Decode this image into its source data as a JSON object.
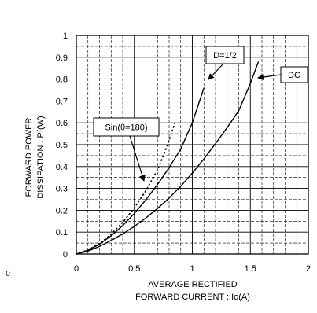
{
  "chart_data": {
    "type": "line",
    "xlabel_lines": [
      "AVERAGE RECTIFIED",
      "FORWARD CURRENT : Io(A)"
    ],
    "ylabel_lines": [
      "FORWARD POWER",
      "DISSIPATION : Pf(W)"
    ],
    "xlim": [
      0,
      2
    ],
    "ylim": [
      0,
      1
    ],
    "x_ticks": [
      0,
      0.5,
      1,
      1.5,
      2
    ],
    "x_tick_labels": [
      "0",
      "0.5",
      "1",
      "1.5",
      "2"
    ],
    "y_ticks": [
      0,
      0.1,
      0.2,
      0.3,
      0.4,
      0.5,
      0.6,
      0.7,
      0.8,
      0.9,
      1
    ],
    "y_tick_labels": [
      "0",
      "0.1",
      "0.2",
      "0.3",
      "0.4",
      "0.5",
      "0.6",
      "0.7",
      "0.8",
      "0.9",
      "1"
    ],
    "stray_label": "0",
    "grid": true,
    "series": [
      {
        "name": "DC",
        "style": "solid",
        "x": [
          0,
          0.1,
          0.2,
          0.3,
          0.4,
          0.5,
          0.6,
          0.7,
          0.8,
          0.9,
          1.0,
          1.1,
          1.2,
          1.3,
          1.4,
          1.5,
          1.57
        ],
        "y": [
          0,
          0.013,
          0.035,
          0.062,
          0.092,
          0.126,
          0.165,
          0.208,
          0.256,
          0.31,
          0.37,
          0.435,
          0.505,
          0.578,
          0.655,
          0.78,
          0.88
        ]
      },
      {
        "name": "D=1/2",
        "style": "solid",
        "x": [
          0,
          0.1,
          0.2,
          0.3,
          0.4,
          0.5,
          0.6,
          0.7,
          0.8,
          0.9,
          1.0,
          1.1
        ],
        "y": [
          0,
          0.017,
          0.045,
          0.083,
          0.13,
          0.185,
          0.248,
          0.318,
          0.395,
          0.48,
          0.6,
          0.76
        ]
      },
      {
        "name": "Sin(θ=180)",
        "style": "dotted",
        "x": [
          0,
          0.1,
          0.2,
          0.3,
          0.4,
          0.5,
          0.6,
          0.7,
          0.75,
          0.8,
          0.85
        ],
        "y": [
          0,
          0.018,
          0.048,
          0.09,
          0.145,
          0.21,
          0.29,
          0.385,
          0.45,
          0.52,
          0.6
        ]
      }
    ],
    "callouts": [
      {
        "label": "D=1/2",
        "target_series": "D=1/2"
      },
      {
        "label": "DC",
        "target_series": "DC"
      },
      {
        "label": "Sin(θ=180)",
        "target_series": "Sin(θ=180)"
      }
    ]
  }
}
